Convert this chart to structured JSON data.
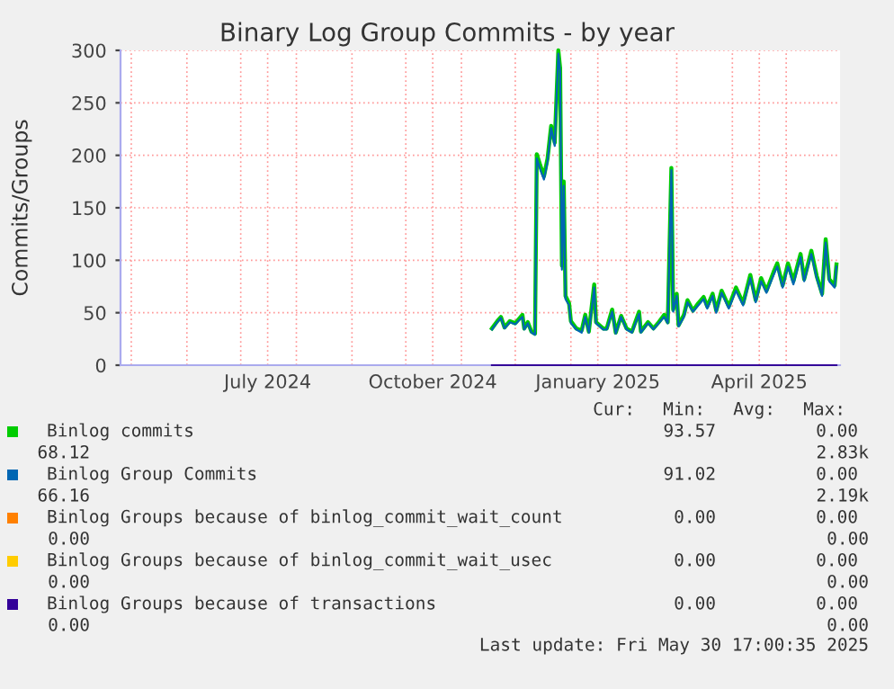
{
  "chart_data": {
    "type": "line",
    "title": "Binary Log Group Commits - by year",
    "ylabel": "Commits/Groups",
    "xlim": [
      "2024-04-25",
      "2025-05-31"
    ],
    "xticks": [
      {
        "value": "2024-05-01",
        "label": null
      },
      {
        "value": "2024-06-01",
        "label": null
      },
      {
        "value": "2024-07-01",
        "label": null
      },
      {
        "value": "2024-07-16",
        "label": "July 2024"
      },
      {
        "value": "2024-08-01",
        "label": null
      },
      {
        "value": "2024-09-01",
        "label": null
      },
      {
        "value": "2024-10-01",
        "label": null
      },
      {
        "value": "2024-10-16",
        "label": "October 2024"
      },
      {
        "value": "2024-11-01",
        "label": null
      },
      {
        "value": "2024-12-01",
        "label": null
      },
      {
        "value": "2025-01-01",
        "label": null
      },
      {
        "value": "2025-01-16",
        "label": "January 2025"
      },
      {
        "value": "2025-02-01",
        "label": null
      },
      {
        "value": "2025-03-01",
        "label": null
      },
      {
        "value": "2025-04-01",
        "label": null
      },
      {
        "value": "2025-04-16",
        "label": "April 2025"
      },
      {
        "value": "2025-05-01",
        "label": null
      }
    ],
    "ylim": [
      0,
      300
    ],
    "yticks": [
      0,
      50,
      100,
      150,
      200,
      250,
      300
    ],
    "grid": true,
    "legend": "bottom",
    "x": [
      "2024-11-18",
      "2024-11-21",
      "2024-11-23",
      "2024-11-25",
      "2024-11-28",
      "2024-12-01",
      "2024-12-05",
      "2024-12-06",
      "2024-12-08",
      "2024-12-10",
      "2024-12-12",
      "2024-12-13",
      "2024-12-15",
      "2024-12-17",
      "2024-12-19",
      "2024-12-21",
      "2024-12-23",
      "2024-12-25",
      "2024-12-26",
      "2024-12-27",
      "2024-12-28",
      "2024-12-29",
      "2024-12-31",
      "2025-01-01",
      "2025-01-04",
      "2025-01-07",
      "2025-01-09",
      "2025-01-11",
      "2025-01-14",
      "2025-01-15",
      "2025-01-19",
      "2025-01-21",
      "2025-01-24",
      "2025-01-26",
      "2025-01-29",
      "2025-02-01",
      "2025-02-04",
      "2025-02-08",
      "2025-02-09",
      "2025-02-13",
      "2025-02-16",
      "2025-02-19",
      "2025-02-22",
      "2025-02-24",
      "2025-02-26",
      "2025-02-27",
      "2025-03-01",
      "2025-03-02",
      "2025-03-05",
      "2025-03-07",
      "2025-03-10",
      "2025-03-13",
      "2025-03-16",
      "2025-03-18",
      "2025-03-21",
      "2025-03-23",
      "2025-03-26",
      "2025-03-30",
      "2025-04-03",
      "2025-04-07",
      "2025-04-11",
      "2025-04-14",
      "2025-04-17",
      "2025-04-20",
      "2025-04-24",
      "2025-04-26",
      "2025-04-29",
      "2025-05-02",
      "2025-05-05",
      "2025-05-09",
      "2025-05-11",
      "2025-05-15",
      "2025-05-18",
      "2025-05-21",
      "2025-05-23",
      "2025-05-25",
      "2025-05-28",
      "2025-05-29"
    ],
    "series": [
      {
        "name": "Binlog commits",
        "color": "#00cc00",
        "values": [
          35,
          42,
          46,
          36,
          42,
          40,
          48,
          35,
          41,
          32,
          30,
          201,
          190,
          180,
          197,
          228,
          212,
          300,
          283,
          95,
          175,
          66,
          59,
          42,
          35,
          33,
          48,
          32,
          77,
          41,
          35,
          35,
          53,
          31,
          47,
          35,
          32,
          51,
          32,
          41,
          35,
          41,
          48,
          41,
          188,
          53,
          68,
          38,
          48,
          62,
          52,
          59,
          65,
          56,
          68,
          52,
          71,
          56,
          74,
          59,
          86,
          62,
          83,
          71,
          89,
          97,
          76,
          97,
          80,
          106,
          82,
          109,
          85,
          68,
          120,
          82,
          76,
          96
        ]
      },
      {
        "name": "Binlog Group Commits",
        "color": "#0066b3",
        "values": [
          34,
          41,
          45,
          35,
          41,
          39,
          46,
          34,
          40,
          31,
          29,
          197,
          186,
          177,
          194,
          226,
          209,
          297,
          280,
          91,
          171,
          63,
          57,
          40,
          34,
          31,
          46,
          31,
          74,
          40,
          34,
          34,
          51,
          30,
          46,
          34,
          31,
          49,
          31,
          40,
          34,
          40,
          46,
          40,
          186,
          51,
          66,
          37,
          46,
          60,
          51,
          57,
          63,
          54,
          66,
          50,
          69,
          54,
          71,
          57,
          83,
          60,
          80,
          69,
          86,
          94,
          74,
          94,
          77,
          103,
          80,
          106,
          83,
          66,
          117,
          80,
          74,
          94
        ]
      },
      {
        "name": "Binlog Groups because of binlog_commit_wait_count",
        "color": "#ff8000",
        "values": [
          null,
          null,
          null,
          null,
          null,
          null,
          null,
          null,
          null,
          null,
          null,
          null,
          null,
          null,
          null,
          null,
          null,
          null,
          null,
          null,
          null,
          null,
          null,
          null,
          null,
          null,
          null,
          null,
          null,
          null,
          null,
          null,
          null,
          null,
          null,
          null,
          null,
          null,
          null,
          null,
          null,
          null,
          null,
          null,
          null,
          null,
          null,
          null,
          null,
          null,
          null,
          null,
          null,
          null,
          null,
          null,
          null,
          null,
          null,
          null,
          null,
          null,
          null,
          null,
          null,
          null,
          null,
          null,
          null,
          null,
          null,
          null,
          null,
          null,
          null,
          null,
          null,
          null
        ]
      },
      {
        "name": "Binlog Groups because of binlog_commit_wait_usec",
        "color": "#ffcc00",
        "values": [
          null,
          null,
          null,
          null,
          null,
          null,
          null,
          null,
          null,
          null,
          null,
          null,
          null,
          null,
          null,
          null,
          null,
          null,
          null,
          null,
          null,
          null,
          null,
          null,
          null,
          null,
          null,
          null,
          null,
          null,
          null,
          null,
          null,
          null,
          null,
          null,
          null,
          null,
          null,
          null,
          null,
          null,
          null,
          null,
          null,
          null,
          null,
          null,
          null,
          null,
          null,
          null,
          null,
          null,
          null,
          null,
          null,
          null,
          null,
          null,
          null,
          null,
          null,
          null,
          null,
          null,
          null,
          null,
          null,
          null,
          null,
          null,
          null,
          null,
          null,
          null,
          null,
          null
        ]
      },
      {
        "name": "Binlog Groups because of transactions",
        "color": "#330099",
        "x": [
          "2024-11-18",
          "2025-05-29"
        ],
        "values": [
          0,
          0
        ]
      }
    ],
    "annotations": [
      "Cur:",
      "Min:",
      "Avg:",
      "Max:",
      "93.57",
      "0.00",
      "68.12",
      "2.83k",
      "91.02",
      "0.00",
      "66.16",
      "2.19k",
      "0.00",
      "0.00",
      "0.00",
      "0.00",
      "0.00",
      "0.00",
      "0.00",
      "0.00",
      "0.00",
      "0.00",
      "0.00",
      "0.00",
      "Last update: Fri May 30 17:00:35 2025"
    ]
  }
}
